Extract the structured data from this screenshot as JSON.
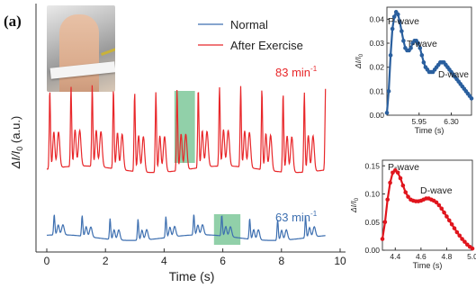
{
  "panel_label": "(a)",
  "photo_icon": "wrist-sensor-photo",
  "colors": {
    "normal": "#3d6fb0",
    "after_exercise": "#e8272a",
    "highlight": "#7ec89a",
    "inset_top": "#2a5f9e",
    "inset_bottom": "#e0151d"
  },
  "chart_data": [
    {
      "type": "line",
      "xlabel": "Time (s)",
      "ylabel": "ΔI/I",
      "ylabel_sub": "0",
      "ylabel_unit": "(a.u.)",
      "xlim": [
        0,
        10
      ],
      "xticks": [
        0,
        2,
        4,
        6,
        8,
        10
      ],
      "legend": {
        "placement": "top-right",
        "entries": [
          "Normal",
          "After Exercise"
        ]
      },
      "annotations": [
        {
          "series": "After Exercise",
          "text": "83 min",
          "sup": "-1"
        },
        {
          "series": "Normal",
          "text": "63 min",
          "sup": "-1"
        }
      ],
      "highlights": [
        {
          "series": "After Exercise",
          "x_range": [
            4.35,
            5.05
          ]
        },
        {
          "series": "Normal",
          "x_range": [
            5.7,
            6.6
          ]
        }
      ],
      "series": [
        {
          "name": "After Exercise",
          "period_s": 0.723,
          "x_range": [
            0,
            9.5
          ],
          "first_peak_x": 0.1,
          "p_wave_amp": 1.0,
          "t_wave_amp": 0.45,
          "d_wave_amp": 0.55,
          "baseline": 0.0
        },
        {
          "name": "Normal",
          "period_s": 0.952,
          "x_range": [
            0,
            9.5
          ],
          "first_peak_x": 0.25,
          "p_wave_amp": 0.3,
          "t_wave_amp": 0.14,
          "d_wave_amp": 0.18,
          "baseline": 0.0
        }
      ]
    },
    {
      "type": "scatter",
      "xlabel": "Time (s)",
      "ylabel": "ΔI/I",
      "ylabel_sub": "0",
      "xlim": [
        5.6,
        6.52
      ],
      "ylim": [
        0,
        0.045
      ],
      "xticks": [
        "5.95",
        "6.30"
      ],
      "xtick_values": [
        5.95,
        6.3
      ],
      "yticks": [
        "0.00",
        "0.01",
        "0.02",
        "0.03",
        "0.04"
      ],
      "ytick_values": [
        0,
        0.01,
        0.02,
        0.03,
        0.04
      ],
      "annotations": [
        "P-wave",
        "T-wave",
        "D-wave"
      ],
      "x": [
        5.6,
        5.62,
        5.64,
        5.66,
        5.68,
        5.7,
        5.72,
        5.74,
        5.76,
        5.78,
        5.8,
        5.82,
        5.84,
        5.86,
        5.88,
        5.9,
        5.92,
        5.94,
        5.96,
        5.98,
        6.0,
        6.02,
        6.04,
        6.06,
        6.08,
        6.1,
        6.12,
        6.14,
        6.16,
        6.18,
        6.2,
        6.22,
        6.24,
        6.26,
        6.28,
        6.3,
        6.32,
        6.34,
        6.36,
        6.38,
        6.4,
        6.42,
        6.44,
        6.46,
        6.48,
        6.5,
        6.52
      ],
      "y": [
        0.001,
        0.01,
        0.025,
        0.036,
        0.041,
        0.043,
        0.042,
        0.039,
        0.035,
        0.031,
        0.028,
        0.027,
        0.027,
        0.028,
        0.03,
        0.031,
        0.031,
        0.03,
        0.028,
        0.025,
        0.022,
        0.02,
        0.019,
        0.018,
        0.018,
        0.018,
        0.019,
        0.02,
        0.021,
        0.022,
        0.022,
        0.022,
        0.021,
        0.02,
        0.019,
        0.018,
        0.017,
        0.016,
        0.015,
        0.014,
        0.013,
        0.012,
        0.011,
        0.01,
        0.009,
        0.008,
        0.007
      ]
    },
    {
      "type": "scatter",
      "xlabel": "Time (s)",
      "ylabel": "ΔI/I",
      "ylabel_sub": "0",
      "xlim": [
        4.3,
        5.0
      ],
      "ylim": [
        0,
        0.16
      ],
      "xticks": [
        "4.4",
        "4.6",
        "4.8",
        "5.0"
      ],
      "xtick_values": [
        4.4,
        4.6,
        4.8,
        5.0
      ],
      "yticks": [
        "0.00",
        "0.05",
        "0.10",
        "0.15"
      ],
      "ytick_values": [
        0,
        0.05,
        0.1,
        0.15
      ],
      "annotations": [
        "P-wave",
        "D-wave"
      ],
      "x": [
        4.3,
        4.32,
        4.34,
        4.36,
        4.38,
        4.4,
        4.42,
        4.44,
        4.46,
        4.48,
        4.5,
        4.52,
        4.54,
        4.56,
        4.58,
        4.6,
        4.62,
        4.64,
        4.66,
        4.68,
        4.7,
        4.72,
        4.74,
        4.76,
        4.78,
        4.8,
        4.82,
        4.84,
        4.86,
        4.88,
        4.9,
        4.92,
        4.94,
        4.96,
        4.98,
        5.0
      ],
      "y": [
        0.02,
        0.05,
        0.09,
        0.12,
        0.138,
        0.142,
        0.138,
        0.128,
        0.115,
        0.103,
        0.095,
        0.09,
        0.088,
        0.087,
        0.087,
        0.088,
        0.09,
        0.092,
        0.092,
        0.09,
        0.088,
        0.085,
        0.08,
        0.074,
        0.067,
        0.06,
        0.053,
        0.046,
        0.039,
        0.032,
        0.026,
        0.02,
        0.015,
        0.01,
        0.006,
        0.003
      ]
    }
  ]
}
